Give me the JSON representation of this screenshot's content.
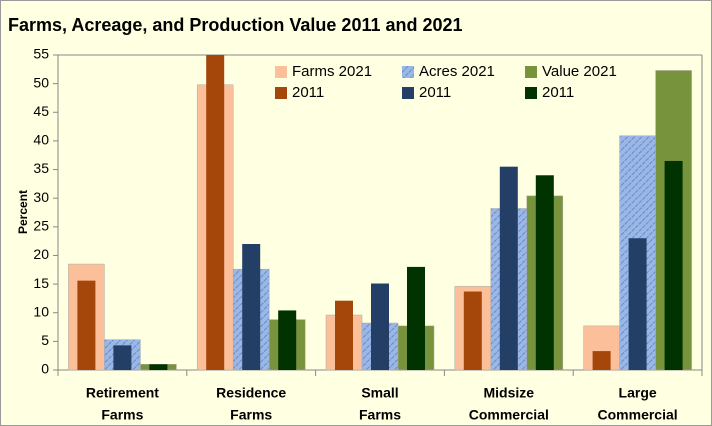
{
  "chart_data": {
    "type": "overlay-bar",
    "title": "Farms, Acreage, and Production Value 2011 and 2021",
    "y_label": "Percent",
    "categories": [
      [
        "Retirement",
        "Farms"
      ],
      [
        "Residence",
        "Farms"
      ],
      [
        "Small",
        "Farms"
      ],
      [
        "Midsize",
        "Commercial"
      ],
      [
        "Large",
        "Commercial"
      ]
    ],
    "series": [
      {
        "name": "Farms 2021",
        "color": "#fbbf99",
        "values": [
          18.5,
          49.8,
          9.6,
          14.6,
          7.7
        ]
      },
      {
        "name": "2011",
        "color": "#a5460b",
        "values": [
          15.6,
          55,
          12.1,
          13.7,
          3.3
        ]
      },
      {
        "name": "Acres 2021",
        "color": "#9ab7e6",
        "pattern": "hatch",
        "values": [
          5.3,
          17.6,
          8.2,
          28.2,
          40.9
        ]
      },
      {
        "name": "2011",
        "color": "#243f66",
        "values": [
          4.3,
          22.0,
          15.1,
          35.5,
          23.0
        ]
      },
      {
        "name": "Value 2021",
        "color": "#77933c",
        "values": [
          1.0,
          8.8,
          7.7,
          30.4,
          52.3
        ]
      },
      {
        "name": "2011",
        "color": "#003300",
        "values": [
          1.0,
          10.4,
          18.0,
          34.0,
          36.5
        ]
      }
    ],
    "ylim": [
      0,
      55
    ],
    "yticks": [
      0,
      5,
      10,
      15,
      20,
      25,
      30,
      35,
      40,
      45,
      50,
      55
    ],
    "grid": false
  }
}
